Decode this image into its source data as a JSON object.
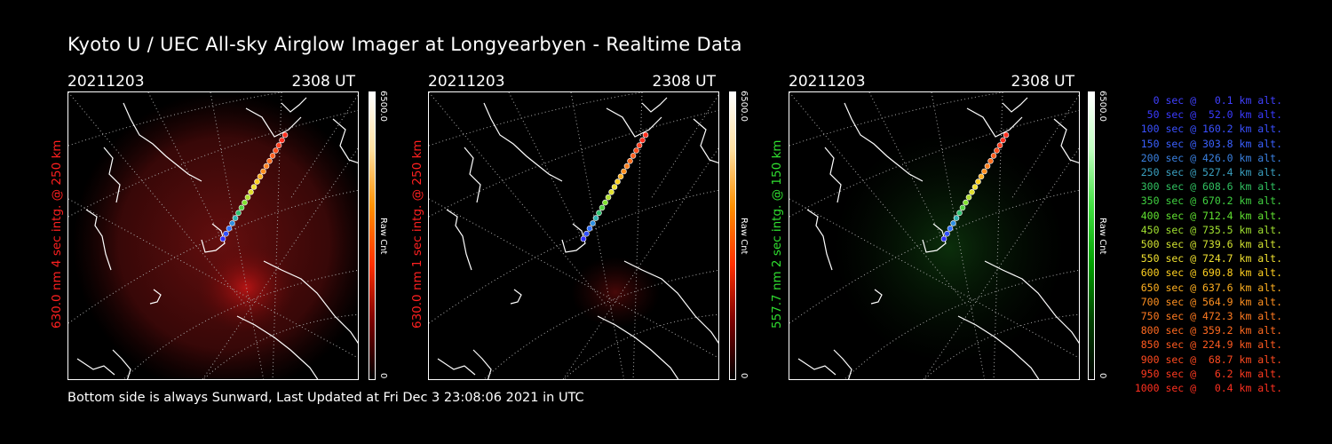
{
  "title": "Kyoto U / UEC All-sky Airglow Imager at Longyearbyen - Realtime Data",
  "footer": "Bottom side is always Sunward, Last Updated at Fri Dec  3 23:08:06 2021 in UTC",
  "panels": [
    {
      "date": "20211203",
      "time": "2308 UT",
      "ylabel": "630.0 nm 4 sec intg. @ 250 km",
      "color": "#ff2020",
      "cbar_max": "6500.0",
      "cbar_min": "0",
      "cbar_unit": "Raw Cnt"
    },
    {
      "date": "20211203",
      "time": "2308 UT",
      "ylabel": "630.0 nm 1 sec intg. @ 250 km",
      "color": "#ff2020",
      "cbar_max": "6500.0",
      "cbar_min": "0",
      "cbar_unit": "Raw Cnt"
    },
    {
      "date": "20211203",
      "time": "2308 UT",
      "ylabel": "557.7 nm 2 sec intg. @ 150 km",
      "color": "#30e030",
      "cbar_max": "6500.0",
      "cbar_min": "0",
      "cbar_unit": "Raw Cnt"
    }
  ],
  "legend": [
    {
      "text": "   0 sec @   0.1 km alt.",
      "color": "#4040ff"
    },
    {
      "text": "  50 sec @  52.0 km alt.",
      "color": "#3a3aff"
    },
    {
      "text": " 100 sec @ 160.2 km alt.",
      "color": "#3a50ff"
    },
    {
      "text": " 150 sec @ 303.8 km alt.",
      "color": "#3a60ff"
    },
    {
      "text": " 200 sec @ 426.0 km alt.",
      "color": "#3a80e0"
    },
    {
      "text": " 250 sec @ 527.4 km alt.",
      "color": "#3aa0c0"
    },
    {
      "text": " 300 sec @ 608.6 km alt.",
      "color": "#30c060"
    },
    {
      "text": " 350 sec @ 670.2 km alt.",
      "color": "#40d040"
    },
    {
      "text": " 400 sec @ 712.4 km alt.",
      "color": "#60e030"
    },
    {
      "text": " 450 sec @ 735.5 km alt.",
      "color": "#a0e030"
    },
    {
      "text": " 500 sec @ 739.6 km alt.",
      "color": "#d0e030"
    },
    {
      "text": " 550 sec @ 724.7 km alt.",
      "color": "#f0e030"
    },
    {
      "text": " 600 sec @ 690.8 km alt.",
      "color": "#ffd020"
    },
    {
      "text": " 650 sec @ 637.6 km alt.",
      "color": "#ffb020"
    },
    {
      "text": " 700 sec @ 564.9 km alt.",
      "color": "#ff9020"
    },
    {
      "text": " 750 sec @ 472.3 km alt.",
      "color": "#ff7a20"
    },
    {
      "text": " 800 sec @ 359.2 km alt.",
      "color": "#ff6a20"
    },
    {
      "text": " 850 sec @ 224.9 km alt.",
      "color": "#ff5a20"
    },
    {
      "text": " 900 sec @  68.7 km alt.",
      "color": "#ff4a20"
    },
    {
      "text": " 950 sec @   6.2 km alt.",
      "color": "#ff3a20"
    },
    {
      "text": "1000 sec @   0.4 km alt.",
      "color": "#ff3020"
    }
  ],
  "trajectory_colors": [
    "#3030ff",
    "#3050ff",
    "#3070ff",
    "#3090e0",
    "#30b0b0",
    "#30c070",
    "#50d040",
    "#80e030",
    "#b0e030",
    "#e0e030",
    "#f0e030",
    "#ffd020",
    "#ffb020",
    "#ff9020",
    "#ff8020",
    "#ff7020",
    "#ff6020",
    "#ff5020",
    "#ff4020",
    "#ff3020",
    "#ff3020"
  ]
}
